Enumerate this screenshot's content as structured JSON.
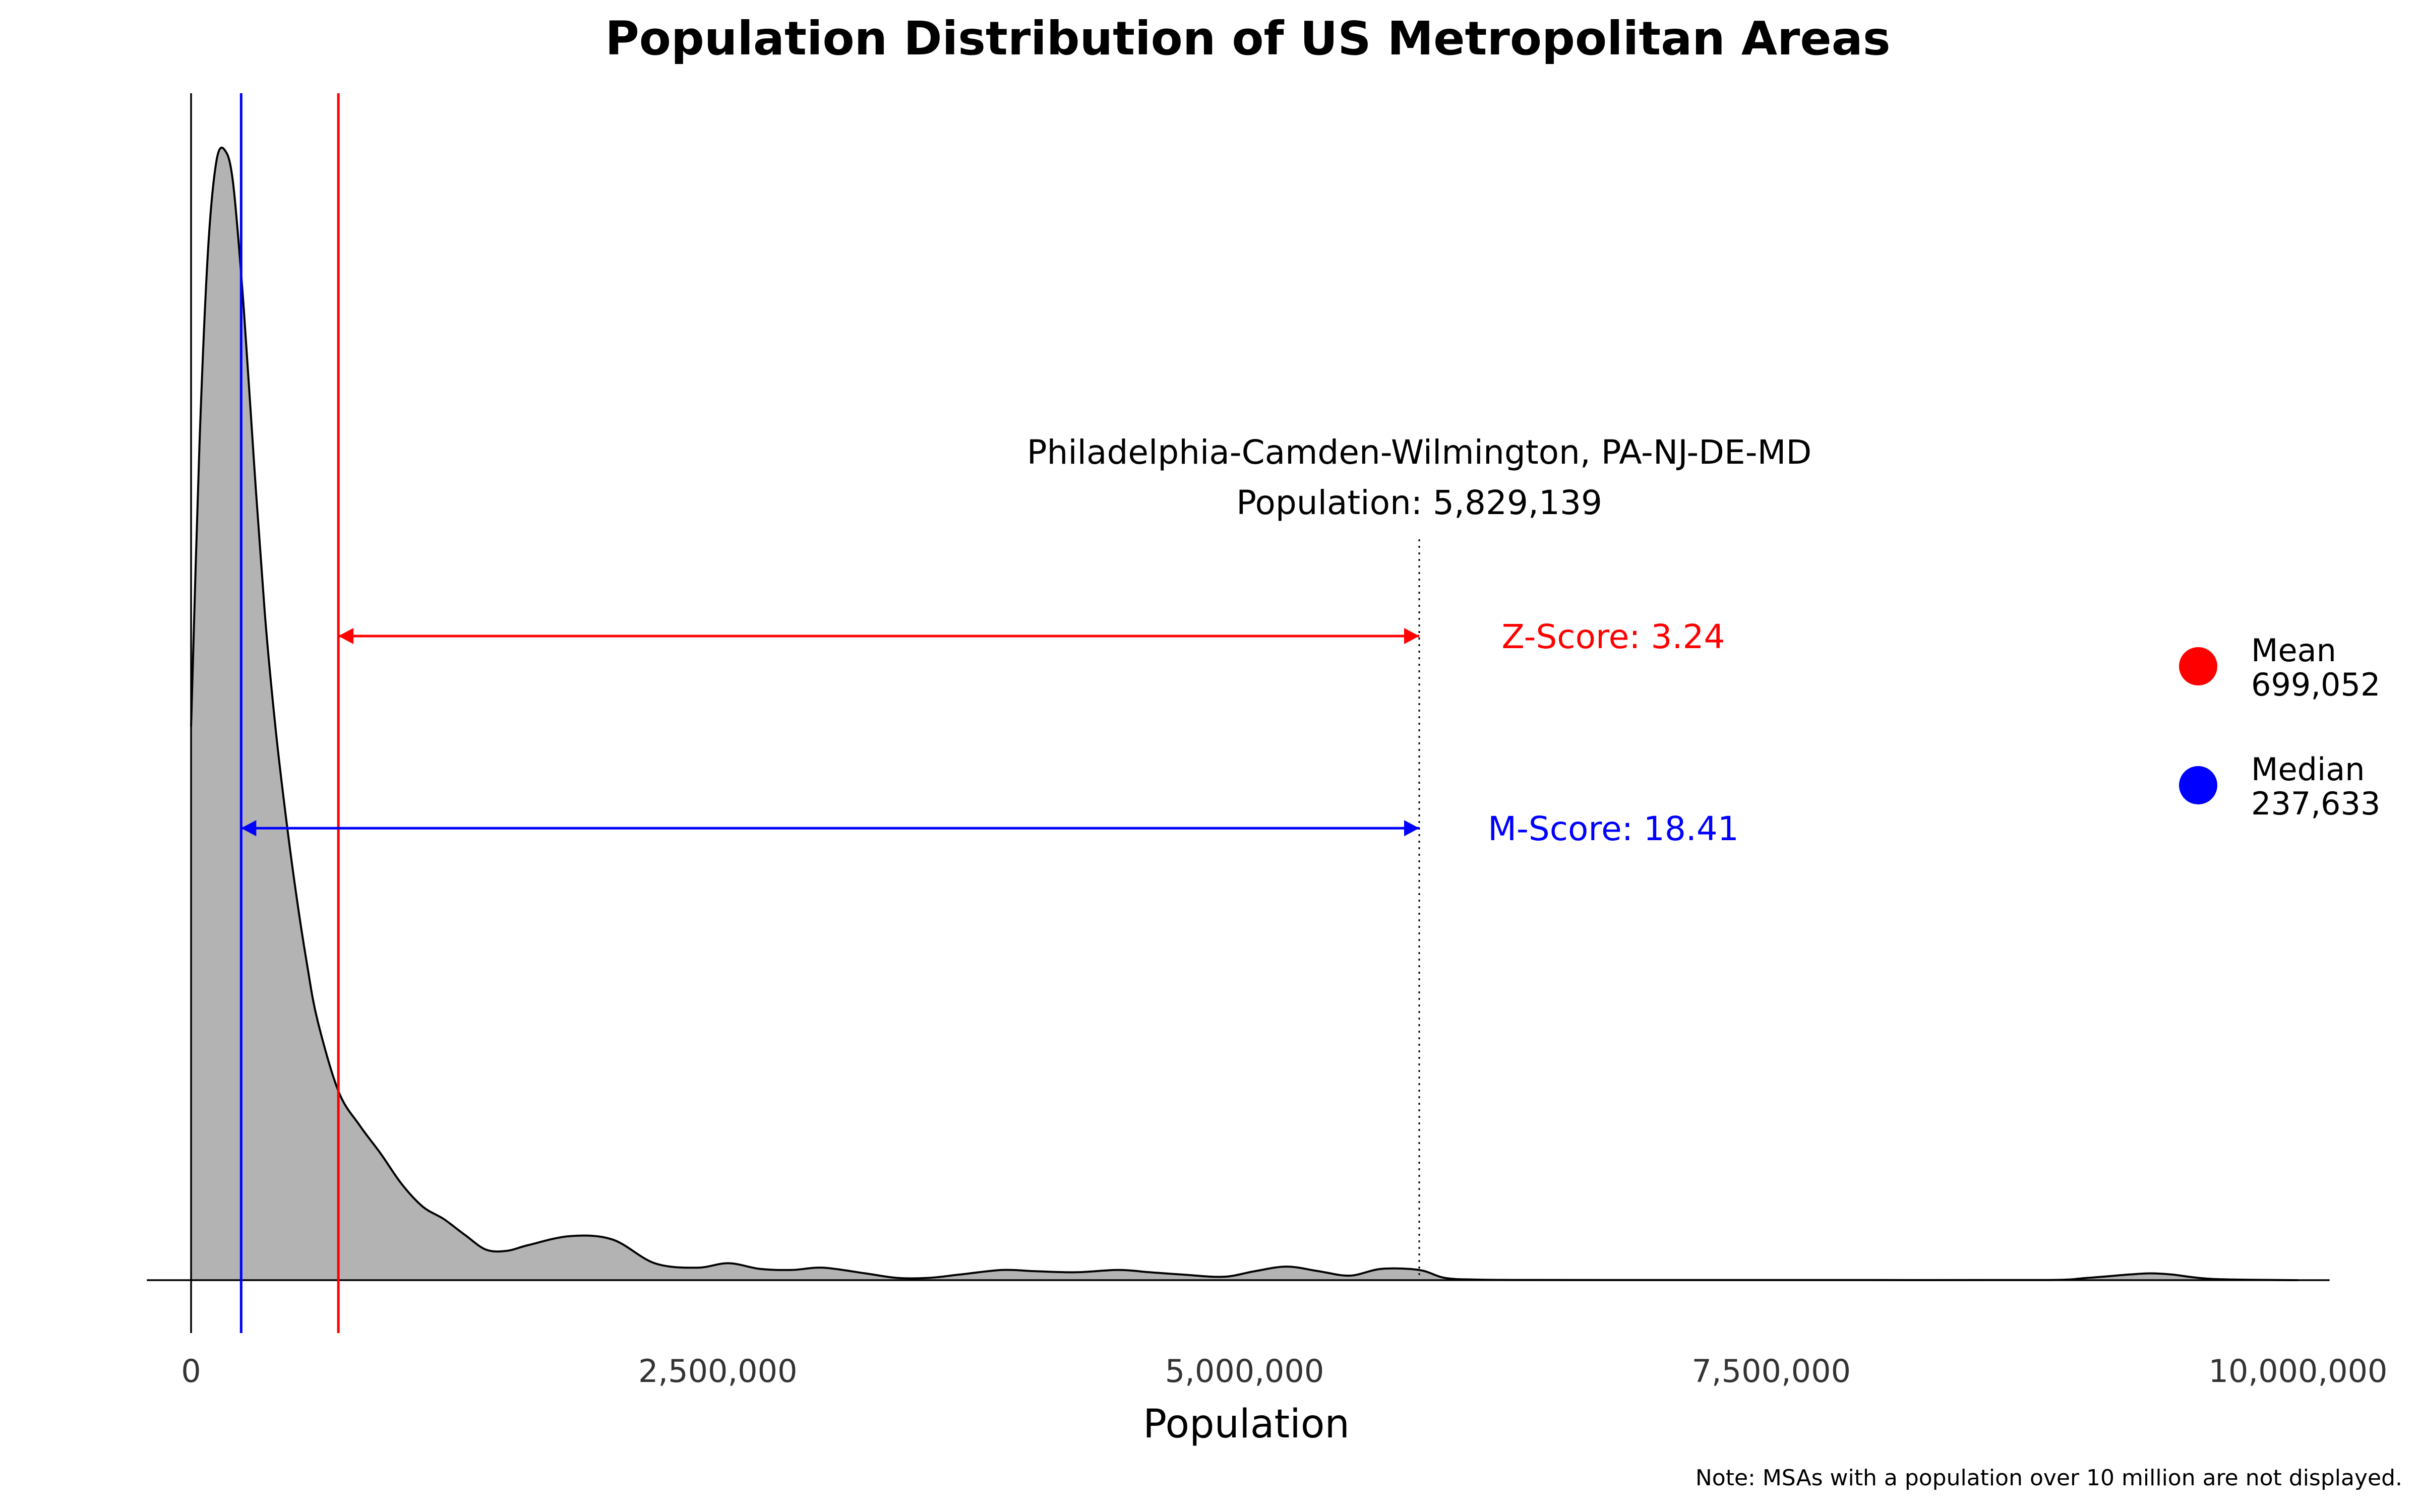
{
  "chart_data": {
    "type": "area",
    "title": "Population Distribution of US Metropolitan Areas",
    "xlabel": "Population",
    "ylabel": "",
    "xlim": [
      -210000,
      10150000
    ],
    "x_ticks": [
      0,
      2500000,
      5000000,
      7500000,
      10000000
    ],
    "x_tick_labels": [
      "0",
      "2,500,000",
      "5,000,000",
      "7,500,000",
      "10,000,000"
    ],
    "grid": false,
    "series": [
      {
        "x": [
          0,
          40000,
          80000,
          120000,
          160000,
          200000,
          250000,
          300000,
          350000,
          400000,
          450000,
          500000,
          550000,
          600000,
          700000,
          800000,
          900000,
          1000000,
          1100000,
          1200000,
          1300000,
          1400000,
          1500000,
          1600000,
          1800000,
          2000000,
          2200000,
          2400000,
          2550000,
          2700000,
          2850000,
          3000000,
          3200000,
          3350000,
          3500000,
          3650000,
          3850000,
          4000000,
          4200000,
          4400000,
          4550000,
          4700000,
          4900000,
          5050000,
          5200000,
          5350000,
          5500000,
          5650000,
          5829139,
          5950000,
          6100000,
          6300000,
          7000000,
          8000000,
          8800000,
          9000000,
          9200000,
          9300000,
          9400000,
          9600000,
          10000000
        ],
        "y": [
          0.49,
          0.74,
          0.91,
          0.99,
          1.0,
          0.97,
          0.86,
          0.72,
          0.59,
          0.49,
          0.41,
          0.34,
          0.28,
          0.23,
          0.167,
          0.137,
          0.112,
          0.085,
          0.065,
          0.054,
          0.04,
          0.027,
          0.026,
          0.031,
          0.039,
          0.036,
          0.015,
          0.011,
          0.015,
          0.01,
          0.009,
          0.011,
          0.006,
          0.002,
          0.002,
          0.005,
          0.009,
          0.008,
          0.007,
          0.009,
          0.007,
          0.005,
          0.003,
          0.008,
          0.012,
          0.008,
          0.004,
          0.01,
          0.009,
          0.002,
          0.0005,
          0.0002,
          0.0001,
          0.0001,
          0.0001,
          0.002,
          0.005,
          0.006,
          0.005,
          0.001,
          0.0
        ]
      }
    ],
    "vlines": [
      {
        "name": "Mean",
        "x": 699052,
        "color": "#ff0000"
      },
      {
        "name": "Median",
        "x": 237633,
        "color": "#0000ff"
      }
    ],
    "marker": {
      "x": 5829139
    },
    "annotation": {
      "line1": "Philadelphia-Camden-Wilmington, PA-NJ-DE-MD",
      "line2": "Population: 5,829,139"
    },
    "arrows": [
      {
        "label": "Z-Score: 3.24",
        "from": 699052,
        "to": 5829139,
        "color": "#ff0000",
        "y_level": 0.57
      },
      {
        "label": "M-Score: 18.41",
        "from": 237633,
        "to": 5829139,
        "color": "#0000ff",
        "y_level": 0.4
      }
    ],
    "legend": {
      "placement": "right",
      "items": [
        {
          "label": "Mean",
          "value": "699,052",
          "color": "#ff0000"
        },
        {
          "label": "Median",
          "value": "237,633",
          "color": "#0000ff"
        }
      ]
    },
    "note": "Note: MSAs with a population over 10 million are not displayed."
  }
}
